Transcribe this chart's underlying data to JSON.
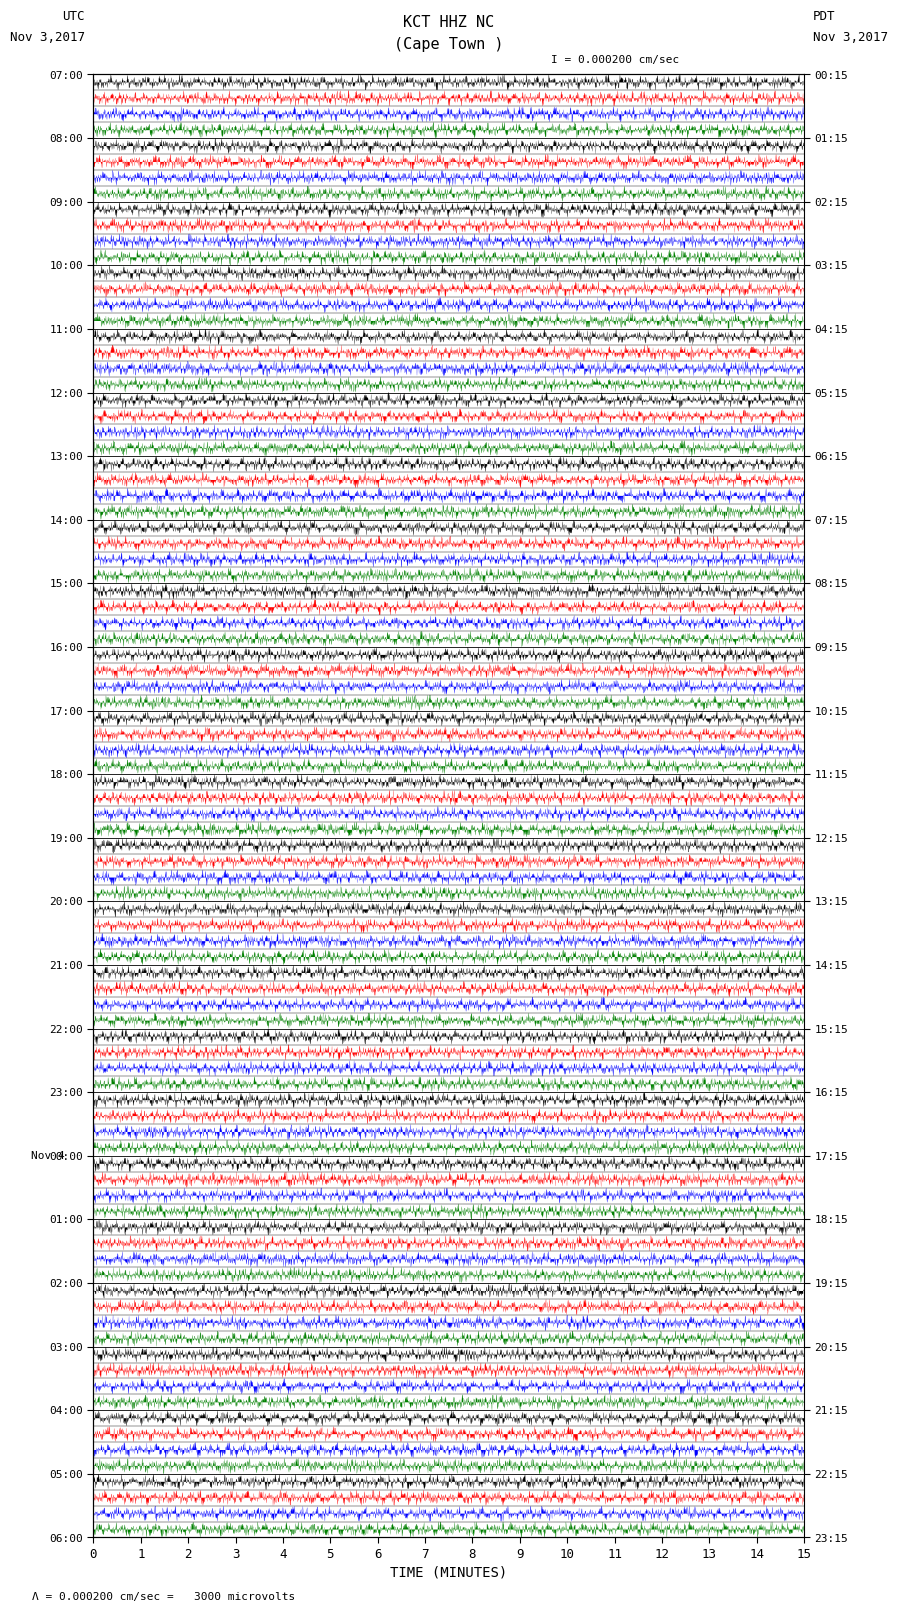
{
  "title_line1": "KCT HHZ NC",
  "title_line2": "(Cape Town )",
  "scale_label": "I = 0.000200 cm/sec",
  "left_label_top": "UTC",
  "left_label_date": "Nov 3,2017",
  "right_label_top": "PDT",
  "right_label_date": "Nov 3,2017",
  "bottom_label": "TIME (MINUTES)",
  "scale_note": "= 0.000200 cm/sec =   3000 microvolts",
  "xlabel_ticks": [
    0,
    1,
    2,
    3,
    4,
    5,
    6,
    7,
    8,
    9,
    10,
    11,
    12,
    13,
    14,
    15
  ],
  "utc_times_labels": [
    "07:00",
    "08:00",
    "09:00",
    "10:00",
    "11:00",
    "12:00",
    "13:00",
    "14:00",
    "15:00",
    "16:00",
    "17:00",
    "18:00",
    "19:00",
    "20:00",
    "21:00",
    "22:00",
    "23:00",
    "00:00",
    "01:00",
    "02:00",
    "03:00",
    "04:00",
    "05:00",
    "06:00"
  ],
  "nov4_row": 17,
  "pdt_times_labels": [
    "00:15",
    "01:15",
    "02:15",
    "03:15",
    "04:15",
    "05:15",
    "06:15",
    "07:15",
    "08:15",
    "09:15",
    "10:15",
    "11:15",
    "12:15",
    "13:15",
    "14:15",
    "15:15",
    "16:15",
    "17:15",
    "18:15",
    "19:15",
    "20:15",
    "21:15",
    "22:15",
    "23:15"
  ],
  "n_hours": 23,
  "subrows_per_hour": 4,
  "trace_colors": [
    "black",
    "red",
    "blue",
    "green"
  ],
  "bg_color": "white",
  "seed": 42,
  "samples_per_row": 2000,
  "fig_width": 8.5,
  "fig_height": 16.13
}
